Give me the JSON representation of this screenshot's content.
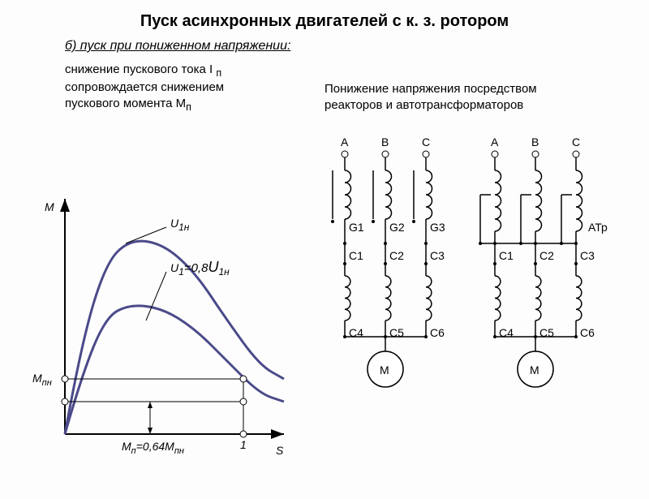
{
  "title": "Пуск асинхронных двигателей с к. з. ротором",
  "subtitle": "б) пуск при пониженном напряжении:",
  "desc1_lines": [
    "снижение пускового тока I",
    "сопровождается снижением",
    "пускового момента M"
  ],
  "desc1_sub1": "п",
  "desc1_sub2": "п",
  "desc2": "Понижение напряжения посредством реакторов и автотрансформаторов",
  "chart": {
    "type": "line",
    "xaxis_label": "S",
    "yaxis_label": "M",
    "xtick": "1",
    "mpn_label": "M",
    "mpn_sub": "пн",
    "u1n_label": "U",
    "u1n_sub": "1н",
    "u1_08_label": "U",
    "u1_08_sub1": "1",
    "u1_08_eq": "=0,8",
    "u1_08_sub2": "1н",
    "mp_label": "M",
    "mp_sub1": "п",
    "mp_eq": "=0,64",
    "mp_sub2": "пн",
    "curve_color": "#4a4a8a",
    "axis_color": "#000000",
    "curve1": [
      [
        0,
        300
      ],
      [
        20,
        190
      ],
      [
        50,
        90
      ],
      [
        80,
        60
      ],
      [
        120,
        65
      ],
      [
        160,
        100
      ],
      [
        200,
        160
      ],
      [
        240,
        215
      ],
      [
        270,
        232
      ]
    ],
    "curve2": [
      [
        0,
        300
      ],
      [
        20,
        230
      ],
      [
        50,
        156
      ],
      [
        80,
        140
      ],
      [
        120,
        145
      ],
      [
        160,
        170
      ],
      [
        200,
        210
      ],
      [
        240,
        250
      ],
      [
        270,
        260
      ]
    ]
  },
  "circuit_left": {
    "phases": [
      "A",
      "B",
      "C"
    ],
    "g_labels": [
      "G1",
      "G2",
      "G3"
    ],
    "c_top": [
      "C1",
      "C2",
      "C3"
    ],
    "c_bot": [
      "C4",
      "C5",
      "C6"
    ],
    "motor": "М"
  },
  "circuit_right": {
    "phases": [
      "A",
      "B",
      "C"
    ],
    "atr_label": "АТр",
    "c_top": [
      "C1",
      "C2",
      "C3"
    ],
    "c_bot": [
      "C4",
      "C5",
      "C6"
    ],
    "motor": "М"
  }
}
